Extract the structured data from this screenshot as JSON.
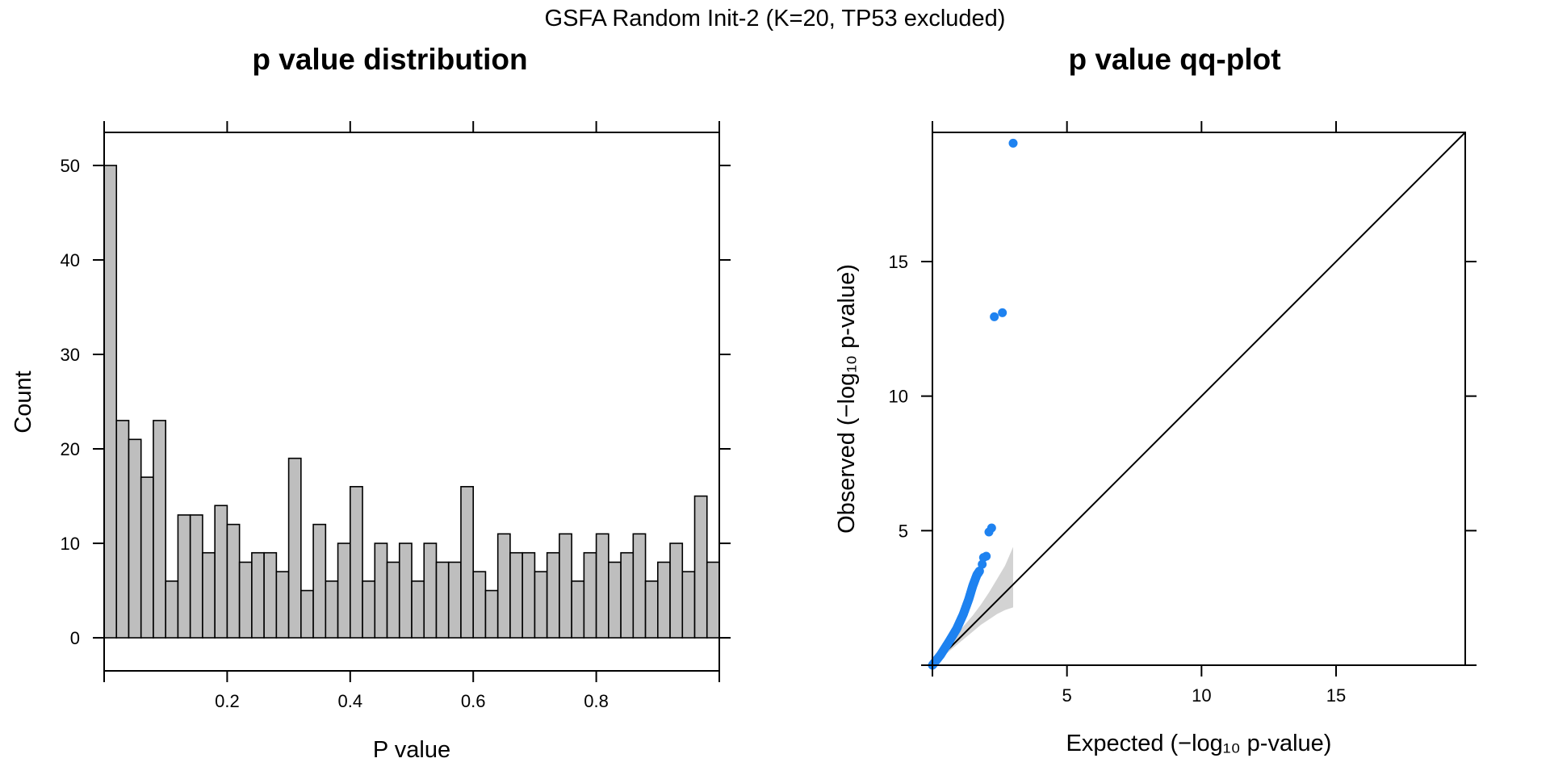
{
  "figure": {
    "title": "GSFA Random Init-2 (K=20, TP53 excluded)"
  },
  "chart_data": [
    {
      "type": "bar",
      "title": "p value distribution",
      "xlabel": "P value",
      "ylabel": "Count",
      "xlim": [
        0,
        1
      ],
      "ylim": [
        -3.5,
        53.5
      ],
      "bin_width": 0.02,
      "bin_starts": [
        0.0,
        0.02,
        0.04,
        0.06,
        0.08,
        0.1,
        0.12,
        0.14,
        0.16,
        0.18,
        0.2,
        0.22,
        0.24,
        0.26,
        0.28,
        0.3,
        0.32,
        0.34,
        0.36,
        0.38,
        0.4,
        0.42,
        0.44,
        0.46,
        0.48,
        0.5,
        0.52,
        0.54,
        0.56,
        0.58,
        0.6,
        0.62,
        0.64,
        0.66,
        0.68,
        0.7,
        0.72,
        0.74,
        0.76,
        0.78,
        0.8,
        0.82,
        0.84,
        0.86,
        0.88,
        0.9,
        0.92,
        0.94,
        0.96,
        0.98
      ],
      "values": [
        50,
        23,
        21,
        17,
        23,
        6,
        13,
        13,
        9,
        14,
        12,
        8,
        9,
        9,
        7,
        19,
        5,
        12,
        6,
        10,
        16,
        6,
        10,
        8,
        10,
        6,
        10,
        8,
        8,
        16,
        7,
        5,
        11,
        9,
        9,
        7,
        9,
        11,
        6,
        9,
        11,
        8,
        9,
        11,
        6,
        8,
        10,
        7,
        15,
        8
      ],
      "x_ticks": [
        "0.2",
        "0.4",
        "0.6",
        "0.8"
      ],
      "y_ticks": [
        "0",
        "10",
        "20",
        "30",
        "40",
        "50"
      ],
      "bar_color": "#bebebe"
    },
    {
      "type": "scatter",
      "title": "p value qq-plot",
      "xlabel": "Expected (−log₁₀ p-value)",
      "ylabel": "Observed (−log₁₀ p-value)",
      "xlim": [
        0,
        19.8
      ],
      "ylim": [
        0,
        19.8
      ],
      "x_ticks": [
        "5",
        "10",
        "15"
      ],
      "y_ticks": [
        "5",
        "10",
        "15"
      ],
      "point_color": "#1e82f0",
      "band_color": "#d3d3d3",
      "reference_line": "y = x",
      "outlier_points": [
        {
          "x": 3.0,
          "y": 19.4
        },
        {
          "x": 2.6,
          "y": 13.1
        },
        {
          "x": 2.3,
          "y": 12.95
        },
        {
          "x": 2.2,
          "y": 5.1
        },
        {
          "x": 2.1,
          "y": 4.95
        },
        {
          "x": 2.0,
          "y": 4.05
        },
        {
          "x": 1.9,
          "y": 4.0
        },
        {
          "x": 1.85,
          "y": 3.75
        }
      ],
      "bulk_curve": [
        {
          "x": 0.0,
          "y": 0.0
        },
        {
          "x": 0.3,
          "y": 0.38
        },
        {
          "x": 0.6,
          "y": 0.85
        },
        {
          "x": 0.9,
          "y": 1.35
        },
        {
          "x": 1.15,
          "y": 1.9
        },
        {
          "x": 1.35,
          "y": 2.45
        },
        {
          "x": 1.5,
          "y": 2.95
        },
        {
          "x": 1.65,
          "y": 3.35
        },
        {
          "x": 1.75,
          "y": 3.5
        }
      ],
      "band": {
        "x": [
          0.0,
          0.3,
          0.6,
          0.9,
          1.2,
          1.5,
          1.8,
          2.1,
          2.4,
          2.7,
          3.0
        ],
        "upper": [
          0.0,
          0.45,
          0.8,
          1.15,
          1.5,
          1.85,
          2.25,
          2.7,
          3.2,
          3.7,
          4.4
        ],
        "lower": [
          0.0,
          0.25,
          0.5,
          0.75,
          1.0,
          1.25,
          1.5,
          1.7,
          1.9,
          2.05,
          2.15
        ]
      }
    }
  ]
}
